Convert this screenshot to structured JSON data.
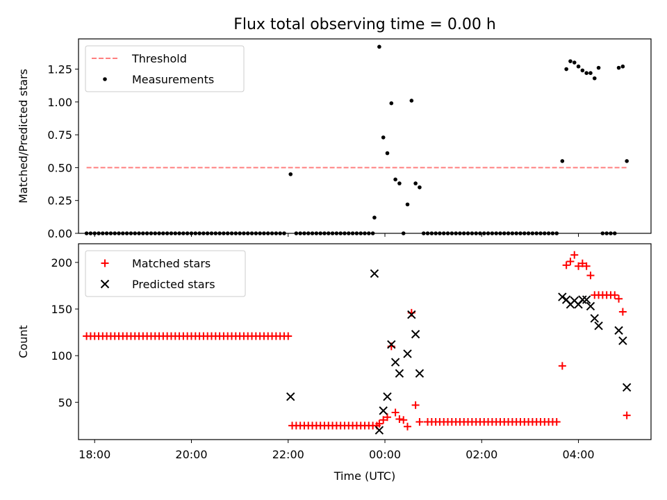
{
  "title": "Flux total observing time = 0.00 h",
  "colors": {
    "threshold": "#ff7f7f",
    "measurements": "#000000",
    "matched": "#ff0000",
    "predicted": "#000000"
  },
  "chart_data": [
    {
      "type": "scatter",
      "ylabel": "Matched/Predicted stars",
      "xlabel": "",
      "x_is_hours_from_midnight": true,
      "xlim": [
        "17:40",
        "05:30"
      ],
      "ylim": [
        0.0,
        1.48
      ],
      "yticks": [
        0.0,
        0.25,
        0.5,
        0.75,
        1.0,
        1.25
      ],
      "ytick_labels": [
        "0.00",
        "0.25",
        "0.50",
        "0.75",
        "1.00",
        "1.25"
      ],
      "legend": {
        "position": "top-left",
        "entries": [
          "Threshold",
          "Measurements"
        ]
      },
      "threshold": {
        "name": "Threshold",
        "value": 0.5,
        "x_range": [
          "17:50",
          "05:00"
        ]
      },
      "series": [
        {
          "name": "Measurements",
          "marker": "dot",
          "points": [
            [
              "17:50",
              0
            ],
            [
              "17:55",
              0
            ],
            [
              "18:00",
              0
            ],
            [
              "18:05",
              0
            ],
            [
              "18:10",
              0
            ],
            [
              "18:15",
              0
            ],
            [
              "18:20",
              0
            ],
            [
              "18:25",
              0
            ],
            [
              "18:30",
              0
            ],
            [
              "18:35",
              0
            ],
            [
              "18:40",
              0
            ],
            [
              "18:45",
              0
            ],
            [
              "18:50",
              0
            ],
            [
              "18:55",
              0
            ],
            [
              "19:00",
              0
            ],
            [
              "19:05",
              0
            ],
            [
              "19:10",
              0
            ],
            [
              "19:15",
              0
            ],
            [
              "19:20",
              0
            ],
            [
              "19:25",
              0
            ],
            [
              "19:30",
              0
            ],
            [
              "19:35",
              0
            ],
            [
              "19:40",
              0
            ],
            [
              "19:45",
              0
            ],
            [
              "19:50",
              0
            ],
            [
              "19:55",
              0
            ],
            [
              "20:00",
              0
            ],
            [
              "20:05",
              0
            ],
            [
              "20:10",
              0
            ],
            [
              "20:15",
              0
            ],
            [
              "20:20",
              0
            ],
            [
              "20:25",
              0
            ],
            [
              "20:30",
              0
            ],
            [
              "20:35",
              0
            ],
            [
              "20:40",
              0
            ],
            [
              "20:45",
              0
            ],
            [
              "20:50",
              0
            ],
            [
              "20:55",
              0
            ],
            [
              "21:00",
              0
            ],
            [
              "21:05",
              0
            ],
            [
              "21:10",
              0
            ],
            [
              "21:15",
              0
            ],
            [
              "21:20",
              0
            ],
            [
              "21:25",
              0
            ],
            [
              "21:30",
              0
            ],
            [
              "21:35",
              0
            ],
            [
              "21:40",
              0
            ],
            [
              "21:45",
              0
            ],
            [
              "21:50",
              0
            ],
            [
              "21:55",
              0
            ],
            [
              "22:03",
              0.45
            ],
            [
              "22:10",
              0
            ],
            [
              "22:15",
              0
            ],
            [
              "22:20",
              0
            ],
            [
              "22:25",
              0
            ],
            [
              "22:30",
              0
            ],
            [
              "22:35",
              0
            ],
            [
              "22:40",
              0
            ],
            [
              "22:45",
              0
            ],
            [
              "22:50",
              0
            ],
            [
              "22:55",
              0
            ],
            [
              "23:00",
              0
            ],
            [
              "23:05",
              0
            ],
            [
              "23:10",
              0
            ],
            [
              "23:15",
              0
            ],
            [
              "23:20",
              0
            ],
            [
              "23:25",
              0
            ],
            [
              "23:30",
              0
            ],
            [
              "23:35",
              0
            ],
            [
              "23:40",
              0
            ],
            [
              "23:45",
              0
            ],
            [
              "23:47",
              0.12
            ],
            [
              "23:53",
              1.42
            ],
            [
              "23:58",
              0.73
            ],
            [
              "00:03",
              0.61
            ],
            [
              "00:08",
              0.99
            ],
            [
              "00:13",
              0.41
            ],
            [
              "00:18",
              0.38
            ],
            [
              "00:23",
              0
            ],
            [
              "00:28",
              0.22
            ],
            [
              "00:33",
              1.01
            ],
            [
              "00:38",
              0.38
            ],
            [
              "00:43",
              0.35
            ],
            [
              "00:48",
              0
            ],
            [
              "00:53",
              0
            ],
            [
              "00:58",
              0
            ],
            [
              "01:03",
              0
            ],
            [
              "01:08",
              0
            ],
            [
              "01:13",
              0
            ],
            [
              "01:18",
              0
            ],
            [
              "01:23",
              0
            ],
            [
              "01:28",
              0
            ],
            [
              "01:33",
              0
            ],
            [
              "01:38",
              0
            ],
            [
              "01:43",
              0
            ],
            [
              "01:48",
              0
            ],
            [
              "01:53",
              0
            ],
            [
              "01:58",
              0
            ],
            [
              "02:03",
              0
            ],
            [
              "02:08",
              0
            ],
            [
              "02:13",
              0
            ],
            [
              "02:18",
              0
            ],
            [
              "02:23",
              0
            ],
            [
              "02:28",
              0
            ],
            [
              "02:33",
              0
            ],
            [
              "02:38",
              0
            ],
            [
              "02:43",
              0
            ],
            [
              "02:48",
              0
            ],
            [
              "02:53",
              0
            ],
            [
              "02:58",
              0
            ],
            [
              "03:03",
              0
            ],
            [
              "03:08",
              0
            ],
            [
              "03:13",
              0
            ],
            [
              "03:18",
              0
            ],
            [
              "03:23",
              0
            ],
            [
              "03:28",
              0
            ],
            [
              "03:33",
              0
            ],
            [
              "03:40",
              0.55
            ],
            [
              "03:45",
              1.25
            ],
            [
              "03:50",
              1.31
            ],
            [
              "03:55",
              1.3
            ],
            [
              "04:00",
              1.27
            ],
            [
              "04:05",
              1.24
            ],
            [
              "04:10",
              1.22
            ],
            [
              "04:15",
              1.22
            ],
            [
              "04:20",
              1.18
            ],
            [
              "04:25",
              1.26
            ],
            [
              "04:30",
              0
            ],
            [
              "04:35",
              0
            ],
            [
              "04:40",
              0
            ],
            [
              "04:45",
              0
            ],
            [
              "04:50",
              1.26
            ],
            [
              "04:55",
              1.27
            ],
            [
              "05:00",
              0.55
            ]
          ]
        }
      ]
    },
    {
      "type": "scatter",
      "ylabel": "Count",
      "xlabel": "Time (UTC)",
      "x_is_hours_from_midnight": true,
      "xlim": [
        "17:40",
        "05:30"
      ],
      "ylim": [
        10,
        220
      ],
      "yticks": [
        50,
        100,
        150,
        200
      ],
      "ytick_labels": [
        "50",
        "100",
        "150",
        "200"
      ],
      "xticks": [
        "18:00",
        "20:00",
        "22:00",
        "00:00",
        "02:00",
        "04:00"
      ],
      "xtick_labels": [
        "18:00",
        "20:00",
        "22:00",
        "00:00",
        "02:00",
        "04:00"
      ],
      "legend": {
        "position": "top-left",
        "entries": [
          "Matched stars",
          "Predicted stars"
        ]
      },
      "series": [
        {
          "name": "Matched stars",
          "marker": "plus",
          "segments": [
            {
              "from": "17:50",
              "to": "22:00",
              "step_minutes": 5,
              "value": 121
            },
            {
              "from": "22:05",
              "to": "23:50",
              "step_minutes": 5,
              "value": 25
            },
            {
              "from": "00:53",
              "to": "03:33",
              "step_minutes": 5,
              "value": 29
            },
            {
              "from": "04:20",
              "to": "04:45",
              "step_minutes": 5,
              "value": 165
            }
          ],
          "points": [
            [
              "23:53",
              27
            ],
            [
              "23:58",
              31
            ],
            [
              "00:03",
              34
            ],
            [
              "00:08",
              110
            ],
            [
              "00:13",
              39
            ],
            [
              "00:18",
              32
            ],
            [
              "00:23",
              31
            ],
            [
              "00:28",
              24
            ],
            [
              "00:33",
              146
            ],
            [
              "00:38",
              47
            ],
            [
              "00:43",
              29
            ],
            [
              "03:40",
              89
            ],
            [
              "03:45",
              197
            ],
            [
              "03:50",
              201
            ],
            [
              "03:55",
              208
            ],
            [
              "04:00",
              196
            ],
            [
              "04:05",
              199
            ],
            [
              "04:10",
              196
            ],
            [
              "04:15",
              186
            ],
            [
              "04:50",
              161
            ],
            [
              "04:55",
              147
            ],
            [
              "05:00",
              36
            ]
          ]
        },
        {
          "name": "Predicted stars",
          "marker": "x",
          "points": [
            [
              "22:03",
              56
            ],
            [
              "23:47",
              188
            ],
            [
              "23:53",
              20
            ],
            [
              "23:58",
              41
            ],
            [
              "00:03",
              56
            ],
            [
              "00:08",
              112
            ],
            [
              "00:13",
              93
            ],
            [
              "00:18",
              81
            ],
            [
              "00:28",
              102
            ],
            [
              "00:33",
              144
            ],
            [
              "00:38",
              123
            ],
            [
              "00:43",
              81
            ],
            [
              "03:40",
              163
            ],
            [
              "03:45",
              160
            ],
            [
              "03:50",
              155
            ],
            [
              "03:55",
              159
            ],
            [
              "04:00",
              155
            ],
            [
              "04:05",
              160
            ],
            [
              "04:10",
              160
            ],
            [
              "04:15",
              153
            ],
            [
              "04:20",
              140
            ],
            [
              "04:25",
              132
            ],
            [
              "04:50",
              127
            ],
            [
              "04:55",
              116
            ],
            [
              "05:00",
              66
            ]
          ]
        }
      ]
    }
  ]
}
